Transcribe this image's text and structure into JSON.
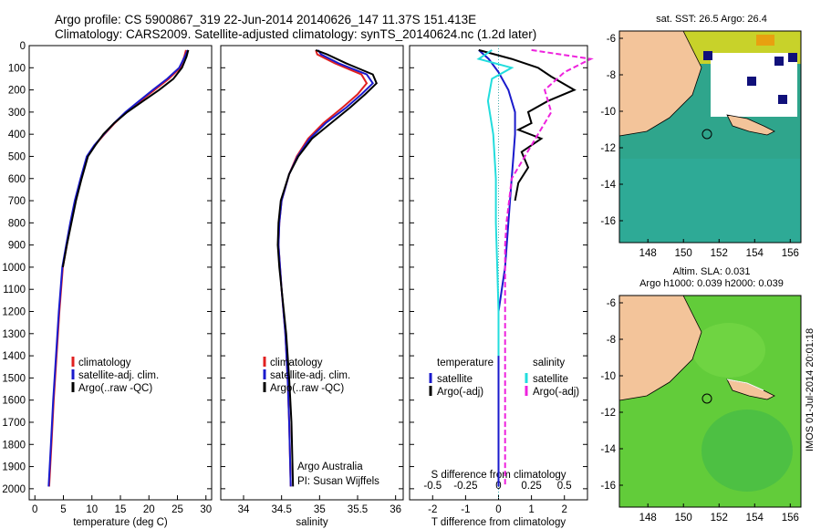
{
  "header": {
    "line1": "Argo profile: CS 5900867_319 22-Jun-2014 20140626_147 11.37S 151.413E",
    "line2": "Climatology: CARS2009. Satellite-adjusted climatology: synTS_20140624.nc (1.2d later)"
  },
  "stamp": "IMOS 01-Jul-2014 20:01:18",
  "colors": {
    "climatology": "#e02020",
    "satellite": "#1a1acc",
    "argo": "#000000",
    "salinity_satellite": "#22dddd",
    "salinity_argo": "#ee22dd",
    "land": "#f3c49a",
    "sst_ocean": "#2fa58c",
    "sla_ocean": "#62cc3a"
  },
  "chart_data": [
    {
      "type": "line",
      "xlabel": "temperature (deg C)",
      "xlim": [
        -1,
        31
      ],
      "xticks": [
        0,
        5,
        10,
        15,
        20,
        25,
        30
      ],
      "ylim": [
        2050,
        0
      ],
      "yticks": [
        0,
        100,
        200,
        300,
        400,
        500,
        600,
        700,
        800,
        900,
        1000,
        1100,
        1200,
        1300,
        1400,
        1500,
        1600,
        1700,
        1800,
        1900,
        2000
      ],
      "grid": false,
      "legend": [
        "climatology",
        "satellite-adj. clim.",
        "Argo(..raw -QC)"
      ],
      "series": [
        {
          "name": "climatology",
          "color": "red",
          "x": [
            26.5,
            26.2,
            25.5,
            23.5,
            21.0,
            18.5,
            16.0,
            14.0,
            12.2,
            10.5,
            9.2,
            8.1,
            7.1,
            6.3,
            5.6,
            4.9,
            4.3,
            3.8,
            3.3,
            2.9,
            2.5
          ],
          "y": [
            20,
            50,
            100,
            150,
            200,
            250,
            300,
            350,
            400,
            450,
            500,
            600,
            700,
            800,
            900,
            1000,
            1200,
            1400,
            1600,
            1800,
            1990
          ]
        },
        {
          "name": "satellite-adj. clim.",
          "color": "blue",
          "x": [
            26.8,
            26.3,
            25.3,
            23.2,
            20.7,
            18.3,
            15.9,
            13.9,
            12.1,
            10.4,
            9.1,
            8.0,
            7.0,
            6.2,
            5.5,
            4.8,
            4.2,
            3.7,
            3.2,
            2.8,
            2.4
          ],
          "y": [
            20,
            50,
            100,
            150,
            200,
            250,
            300,
            350,
            400,
            450,
            500,
            600,
            700,
            800,
            900,
            1000,
            1200,
            1400,
            1600,
            1800,
            1990
          ]
        },
        {
          "name": "Argo(..raw -QC)",
          "color": "black",
          "x": [
            26.9,
            26.6,
            25.8,
            24.3,
            21.8,
            19.0,
            16.2,
            13.9,
            12.0,
            10.6,
            9.3,
            8.2,
            7.2,
            6.4,
            5.6,
            4.9
          ],
          "y": [
            20,
            50,
            100,
            150,
            200,
            250,
            300,
            350,
            400,
            450,
            500,
            600,
            700,
            800,
            900,
            1000
          ]
        }
      ]
    },
    {
      "type": "line",
      "xlabel": "salinity",
      "xlim": [
        33.7,
        36.1
      ],
      "xticks": [
        34,
        34.5,
        35,
        35.5,
        36
      ],
      "ylim": [
        2050,
        0
      ],
      "grid": false,
      "legend": [
        "climatology",
        "satellite-adj. clim.",
        "Argo(..raw -QC)"
      ],
      "annotations": [
        "Argo Australia",
        "PI: Susan Wijffels"
      ],
      "series": [
        {
          "name": "climatology",
          "color": "red",
          "x": [
            34.95,
            34.97,
            35.2,
            35.55,
            35.62,
            35.5,
            35.3,
            35.05,
            34.85,
            34.7,
            34.6,
            34.5,
            34.47,
            34.46,
            34.48,
            34.5,
            34.55,
            34.58,
            34.6,
            34.62
          ],
          "y": [
            20,
            40,
            80,
            130,
            170,
            220,
            280,
            350,
            420,
            500,
            580,
            700,
            800,
            900,
            1000,
            1100,
            1300,
            1500,
            1700,
            1990
          ]
        },
        {
          "name": "satellite-adj. clim.",
          "color": "blue",
          "x": [
            34.98,
            35.02,
            35.25,
            35.62,
            35.7,
            35.55,
            35.35,
            35.08,
            34.87,
            34.71,
            34.6,
            34.5,
            34.47,
            34.46,
            34.48,
            34.5,
            34.55,
            34.58,
            34.6,
            34.62
          ],
          "y": [
            20,
            40,
            80,
            130,
            170,
            220,
            280,
            350,
            420,
            500,
            580,
            700,
            800,
            900,
            1000,
            1100,
            1300,
            1500,
            1700,
            1990
          ]
        },
        {
          "name": "Argo(..raw -QC)",
          "color": "black",
          "x": [
            34.95,
            35.1,
            35.35,
            35.7,
            35.75,
            35.6,
            35.4,
            35.15,
            34.9,
            34.72,
            34.6,
            34.49,
            34.46,
            34.45,
            34.47,
            34.5,
            34.56,
            34.6,
            34.63,
            34.65
          ],
          "y": [
            20,
            40,
            80,
            130,
            170,
            220,
            280,
            350,
            420,
            500,
            580,
            700,
            800,
            900,
            1000,
            1100,
            1300,
            1500,
            1700,
            1990
          ]
        }
      ]
    },
    {
      "type": "line",
      "xlabel": "T difference from climatology",
      "xlabel_top": "S difference from climatology",
      "xlim": [
        -2.7,
        2.7
      ],
      "xticks": [
        -2,
        -1,
        0,
        1,
        2
      ],
      "xticks_top": [
        -0.5,
        -0.25,
        0,
        0.25,
        0.5
      ],
      "ylim": [
        2050,
        0
      ],
      "grid": false,
      "legend_left": {
        "title": "temperature",
        "entries": [
          "satellite",
          "Argo(-adj)"
        ]
      },
      "legend_right": {
        "title": "salinity",
        "entries": [
          "satellite",
          "Argo(-adj)"
        ]
      },
      "series": [
        {
          "name": "temperature satellite",
          "color": "blue",
          "x": [
            -0.6,
            -0.3,
            0.0,
            0.3,
            0.5,
            0.5,
            0.45,
            0.4,
            0.35,
            0.3,
            0.25,
            0.2,
            0.1,
            0.0,
            0.0,
            0.0,
            0.0,
            0.0,
            0.0
          ],
          "y": [
            20,
            60,
            120,
            200,
            300,
            400,
            500,
            600,
            700,
            800,
            900,
            1000,
            1100,
            1200,
            1300,
            1400,
            1600,
            1800,
            1990
          ]
        },
        {
          "name": "temperature Argo(-adj)",
          "color": "black",
          "x": [
            -0.6,
            0.4,
            1.2,
            1.6,
            2.3,
            1.5,
            0.9,
            1.0,
            0.6,
            1.3,
            0.7,
            0.9,
            0.6,
            0.5
          ],
          "y": [
            20,
            60,
            100,
            140,
            200,
            250,
            300,
            350,
            380,
            420,
            480,
            550,
            620,
            700
          ]
        },
        {
          "name": "salinity satellite",
          "color": "cyan",
          "x": [
            -0.05,
            -0.15,
            0.1,
            -0.05,
            -0.08,
            -0.04,
            -0.02,
            -0.02,
            -0.01,
            0.0,
            0.0
          ],
          "y": [
            20,
            60,
            100,
            150,
            250,
            400,
            600,
            800,
            1000,
            1200,
            1400
          ]
        },
        {
          "name": "salinity Argo(-adj)",
          "color": "magenta",
          "x": [
            0.25,
            0.7,
            0.5,
            0.35,
            0.4,
            0.3,
            0.1,
            0.08,
            0.06,
            0.05,
            0.05,
            0.05,
            0.05,
            0.05,
            0.05
          ],
          "y": [
            20,
            60,
            120,
            200,
            300,
            400,
            600,
            700,
            800,
            900,
            1000,
            1200,
            1400,
            1700,
            1990
          ]
        }
      ]
    },
    {
      "type": "heatmap",
      "title": "sat. SST: 26.5 Argo: 26.4",
      "xticks": [
        148,
        150,
        152,
        154,
        156
      ],
      "yticks": [
        -6,
        -8,
        -10,
        -12,
        -14,
        -16
      ],
      "xlim": [
        146.4,
        156.6
      ],
      "ylim": [
        -17.2,
        -5.6
      ]
    },
    {
      "type": "heatmap",
      "title": "Altim. SLA: 0.031",
      "subtitle": "Argo h1000: 0.039 h2000: 0.039",
      "xticks": [
        148,
        150,
        152,
        154,
        156
      ],
      "yticks": [
        -6,
        -8,
        -10,
        -12,
        -14,
        -16
      ],
      "xlim": [
        146.4,
        156.6
      ],
      "ylim": [
        -17.2,
        -5.6
      ]
    }
  ]
}
